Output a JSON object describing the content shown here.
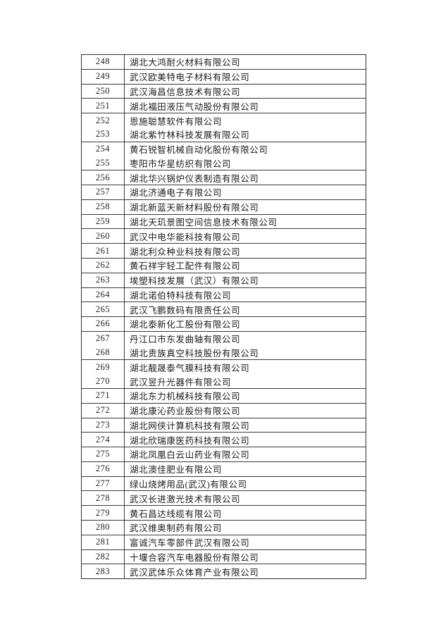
{
  "page": {
    "background_color": "#ffffff",
    "text_color": "#1b1b1b",
    "border_color": "#3a3a3a"
  },
  "table": {
    "row_count": 36,
    "first_row_number": "248",
    "last_row_number": "283",
    "rows": [
      {
        "no": "248",
        "name": "湖北大鸿耐火材料有限公司"
      },
      {
        "no": "249",
        "name": "武汉欧美特电子材料有限公司"
      },
      {
        "no": "250",
        "name": "武汉海昌信息技术有限公司"
      },
      {
        "no": "251",
        "name": "湖北福田液压气动股份有限公司"
      },
      {
        "no": "252",
        "name": "恩施聪慧软件有限公司"
      },
      {
        "no": "253",
        "name": "湖北紫竹林科技发展有限公司",
        "no_top_border": true
      },
      {
        "no": "254",
        "name": "黄石锐智机械自动化股份有限公司"
      },
      {
        "no": "255",
        "name": "枣阳市华星纺织有限公司",
        "no_top_border": true
      },
      {
        "no": "256",
        "name": "湖北华兴锅炉仪表制造有限公司"
      },
      {
        "no": "257",
        "name": "湖北济通电子有限公司"
      },
      {
        "no": "258",
        "name": "湖北新蓝天新材料股份有限公司"
      },
      {
        "no": "259",
        "name": "湖北天玑景图空间信息技术有限公司"
      },
      {
        "no": "260",
        "name": "武汉中电华能科技有限公司"
      },
      {
        "no": "261",
        "name": "湖北利众种业科技有限公司"
      },
      {
        "no": "262",
        "name": "黄石祥宇轻工配件有限公司"
      },
      {
        "no": "263",
        "name": "埃塑科技发展（武汉）有限公司"
      },
      {
        "no": "264",
        "name": "湖北诺伯特科技有限公司"
      },
      {
        "no": "265",
        "name": "武汉飞鹏数码有限责任公司"
      },
      {
        "no": "266",
        "name": "湖北泰新化工股份有限公司"
      },
      {
        "no": "267",
        "name": "丹江口市东发曲轴有限公司"
      },
      {
        "no": "268",
        "name": "湖北贵族真空科技股份有限公司",
        "no_top_border": true
      },
      {
        "no": "269",
        "name": "湖北靓晟泰气膜科技有限公司"
      },
      {
        "no": "270",
        "name": "武汉昱升光器件有限公司",
        "no_top_border": true
      },
      {
        "no": "271",
        "name": "湖北东力机械科技有限公司"
      },
      {
        "no": "272",
        "name": "湖北康沁药业股份有限公司"
      },
      {
        "no": "273",
        "name": "湖北网侠计算机科技有限公司"
      },
      {
        "no": "274",
        "name": "湖北欣瑞康医药科技有限公司"
      },
      {
        "no": "275",
        "name": "湖北凤凰白云山药业有限公司"
      },
      {
        "no": "276",
        "name": "湖北澳佳肥业有限公司"
      },
      {
        "no": "277",
        "name": "绿山烧烤用品(武汉)有限公司"
      },
      {
        "no": "278",
        "name": "武汉长进激光技术有限公司"
      },
      {
        "no": "279",
        "name": "黄石昌达线缆有限公司"
      },
      {
        "no": "280",
        "name": "武汉维奥制药有限公司"
      },
      {
        "no": "281",
        "name": "富诚汽车零部件武汉有限公司"
      },
      {
        "no": "282",
        "name": "十堰合容汽车电器股份有限公司"
      },
      {
        "no": "283",
        "name": "武汉武体乐众体育产业有限公司"
      }
    ]
  }
}
